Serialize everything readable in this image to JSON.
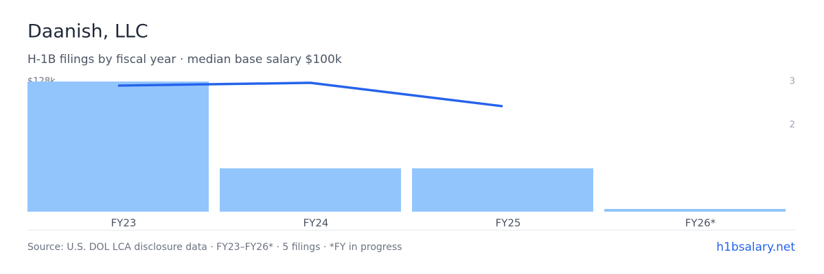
{
  "chart_data": {
    "type": "bar-line",
    "title": "Daanish, LLC",
    "subtitle": "H-1B filings by fiscal year · median base salary $100k",
    "categories": [
      "FY23",
      "FY24",
      "FY25",
      "FY26*"
    ],
    "series": [
      {
        "name": "H-1B filings",
        "type": "bar",
        "axis": "y2",
        "color": "#93c5fd",
        "values": [
          3,
          1,
          1,
          0
        ]
      },
      {
        "name": "Median base salary",
        "type": "line",
        "color": "#2563eb",
        "values": [
          124000,
          126700,
          103700,
          null
        ]
      }
    ],
    "ylim": [
      0,
      128000
    ],
    "yticks": [
      {
        "value": 128000,
        "label": "$128k"
      }
    ],
    "y2lim": [
      0,
      3
    ],
    "y2ticks": [
      2,
      3
    ],
    "source": "Source: U.S. DOL LCA disclosure data · FY23–FY26* · 5 filings · *FY in progress",
    "brand": "h1bsalary.net"
  }
}
